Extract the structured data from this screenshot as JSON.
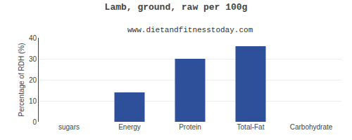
{
  "chart_data": {
    "type": "bar",
    "title": "Lamb, ground, raw per 100g",
    "subtitle": "www.dietandfitnesstoday.com",
    "categories": [
      "sugars",
      "Energy",
      "Protein",
      "Total-Fat",
      "Carbohydrate"
    ],
    "values": [
      0,
      14,
      30,
      36,
      0
    ],
    "color": "#2e4f9a",
    "ylabel": "Percentage of RDH (%)",
    "ylim": [
      0,
      40
    ],
    "yticks": [
      0,
      10,
      20,
      30,
      40
    ],
    "grid": true
  }
}
